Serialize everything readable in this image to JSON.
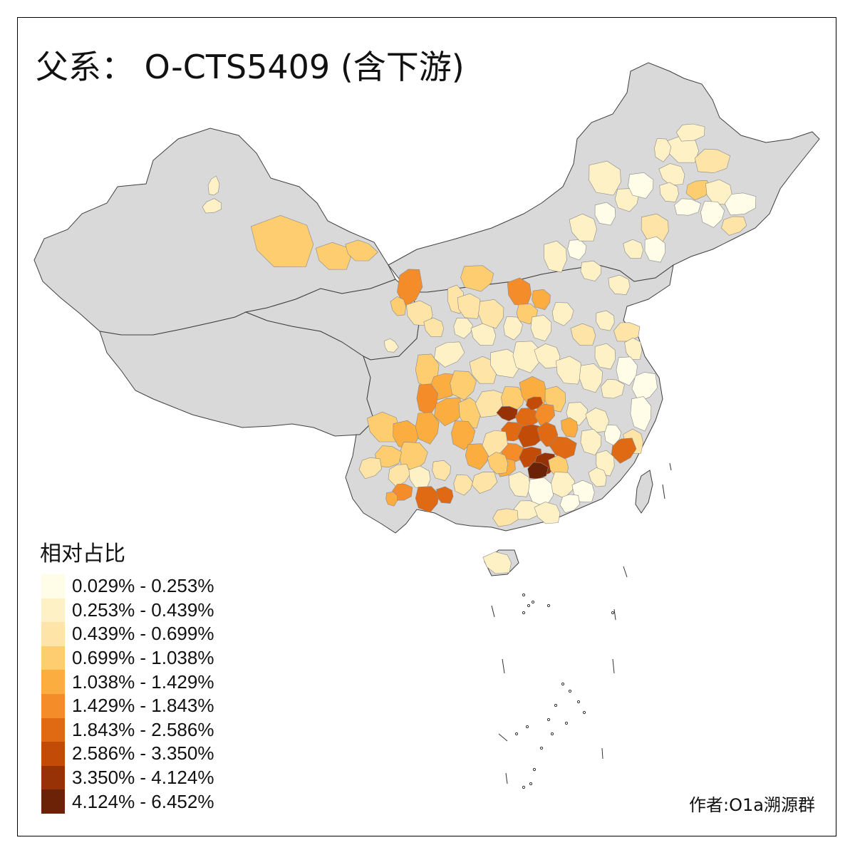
{
  "title": "父系： O-CTS5409 (含下游)",
  "legend": {
    "title": "相对占比",
    "items": [
      {
        "label": "0.029% - 0.253%",
        "color": "#fffde8"
      },
      {
        "label": "0.253% - 0.439%",
        "color": "#fff1c6"
      },
      {
        "label": "0.439% - 0.699%",
        "color": "#fee4a6"
      },
      {
        "label": "0.699% - 1.038%",
        "color": "#fdcd70"
      },
      {
        "label": "1.038% - 1.429%",
        "color": "#fbad40"
      },
      {
        "label": "1.429% - 1.843%",
        "color": "#f38c29"
      },
      {
        "label": "1.843% - 2.586%",
        "color": "#e06a14"
      },
      {
        "label": "2.586% - 3.350%",
        "color": "#c24c07"
      },
      {
        "label": "3.350% - 4.124%",
        "color": "#963205"
      },
      {
        "label": "4.124% - 6.452%",
        "color": "#6b2206"
      }
    ]
  },
  "map": {
    "base_color": "#d9d9d9",
    "border_color": "#404040"
  },
  "author": "作者:O1a溯源群"
}
